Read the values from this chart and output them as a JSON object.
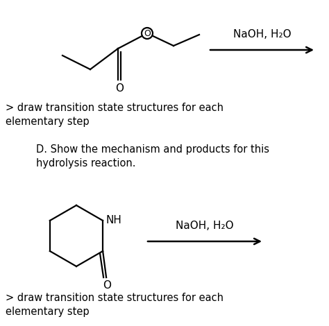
{
  "bg_color": "#ffffff",
  "fig_width": 4.74,
  "fig_height": 4.7,
  "dpi": 100,
  "text1": "> draw transition state structures for each\nelementary step",
  "text2": "D. Show the mechanism and products for this\nhydrolysis reaction.",
  "text3": "> draw transition state structures for each\nelementary step",
  "naoh_label1": "NaOH, H₂O",
  "naoh_label2": "NaOH, H₂O"
}
